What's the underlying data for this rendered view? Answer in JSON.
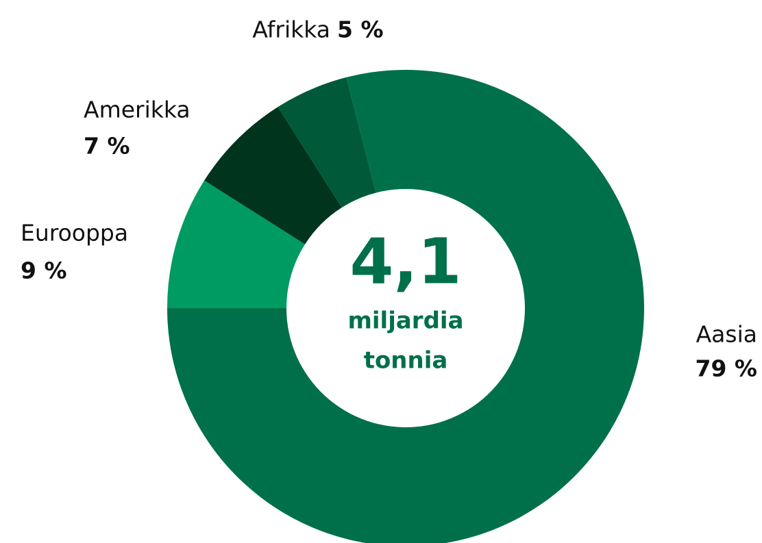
{
  "chart_data": {
    "type": "donut",
    "categories": [
      "Aasia",
      "Eurooppa",
      "Amerikka",
      "Afrikka"
    ],
    "values": [
      79,
      9,
      7,
      5
    ],
    "value_labels": [
      "79 %",
      "9 %",
      "7 %",
      "5 %"
    ],
    "colors": [
      "#00704a",
      "#009a63",
      "#00341d",
      "#005a3a"
    ],
    "center_text": [
      "4,1",
      "miljardia",
      "tonnia"
    ]
  }
}
